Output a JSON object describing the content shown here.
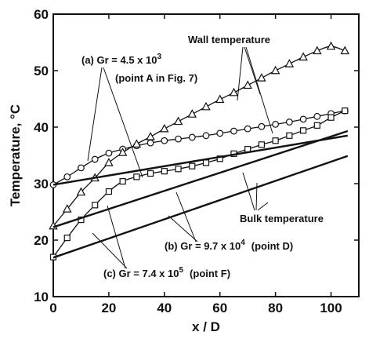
{
  "chart_data": {
    "type": "line",
    "xlabel": "x / D",
    "ylabel": "Temperature,  °C",
    "xlim": [
      0,
      110
    ],
    "ylim": [
      10,
      60
    ],
    "xticks": [
      0,
      20,
      40,
      60,
      80,
      100
    ],
    "yticks": [
      10,
      20,
      30,
      40,
      50,
      60
    ],
    "grid": false,
    "series": [
      {
        "name": "(a) Gr = 4.5×10³ wall",
        "marker": "circle",
        "line": "smooth",
        "x": [
          0,
          5,
          10,
          15,
          20,
          25,
          30,
          35,
          40,
          45,
          50,
          55,
          60,
          65,
          70,
          75,
          80,
          85,
          90,
          95,
          100,
          105
        ],
        "y": [
          29.8,
          31.2,
          32.8,
          34.3,
          35.4,
          36.1,
          36.7,
          37.2,
          37.6,
          37.9,
          38.2,
          38.5,
          38.9,
          39.3,
          39.7,
          40.1,
          40.5,
          40.9,
          41.4,
          41.9,
          42.4,
          42.9
        ]
      },
      {
        "name": "(b) Gr = 9.7×10⁴ wall",
        "marker": "triangle",
        "line": "smooth",
        "x": [
          0,
          5,
          10,
          15,
          20,
          25,
          30,
          35,
          40,
          45,
          50,
          55,
          60,
          65,
          70,
          75,
          80,
          85,
          90,
          95,
          100,
          105
        ],
        "y": [
          22.5,
          25.5,
          28.5,
          31.0,
          33.7,
          35.5,
          37.0,
          38.3,
          39.7,
          41.0,
          42.3,
          43.6,
          44.9,
          46.1,
          47.4,
          48.7,
          50.0,
          51.2,
          52.4,
          53.5,
          54.3,
          53.5
        ]
      },
      {
        "name": "(c) Gr = 7.4×10⁵ wall",
        "marker": "square",
        "line": "smooth",
        "x": [
          0,
          5,
          10,
          15,
          20,
          25,
          30,
          35,
          40,
          45,
          50,
          55,
          60,
          65,
          70,
          75,
          80,
          85,
          90,
          95,
          100,
          105
        ],
        "y": [
          17.0,
          20.4,
          23.6,
          26.2,
          28.6,
          30.4,
          31.2,
          31.8,
          32.2,
          32.6,
          33.1,
          33.7,
          34.4,
          35.3,
          36.1,
          36.9,
          37.6,
          38.5,
          39.4,
          40.3,
          41.7,
          42.9
        ]
      },
      {
        "name": "(a) bulk",
        "marker": "none",
        "line": "straight",
        "x": [
          0,
          106
        ],
        "y": [
          29.8,
          38.5
        ]
      },
      {
        "name": "(b) bulk",
        "marker": "none",
        "line": "straight",
        "x": [
          0,
          106
        ],
        "y": [
          22.3,
          39.3
        ]
      },
      {
        "name": "(c) bulk",
        "marker": "none",
        "line": "straight",
        "x": [
          0,
          106
        ],
        "y": [
          16.9,
          34.9
        ]
      }
    ],
    "annotations": {
      "wall_title": "Wall  temperature",
      "a_line1": "(a)  Gr  =  4.5 x 10",
      "a_exp": "3",
      "a_line2": "(point  A  in  Fig. 7)",
      "b_text": "(b)  Gr  =  9.7 x 10",
      "b_exp": "4",
      "b_tail": "(point  D)",
      "c_text": "(c)  Gr  =  7.4 x 10",
      "c_exp": "5",
      "c_tail": "(point  F)",
      "bulk_title": "Bulk  temperature"
    }
  }
}
